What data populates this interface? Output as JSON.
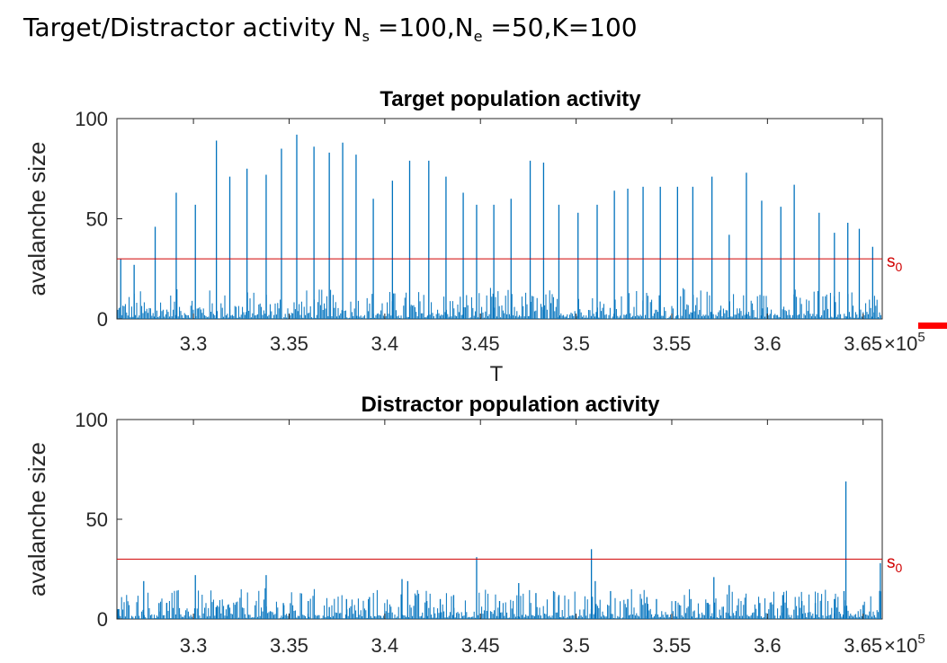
{
  "slide": {
    "title_prefix": "Target/Distractor activity N",
    "sub_s": "s",
    "mid1": " =100,N",
    "sub_e": "e",
    "title_suffix": " =50,K=100"
  },
  "colors": {
    "series": "#0072bd",
    "threshold": "#d00000",
    "axis": "#000000",
    "ticklabel": "#262626",
    "marker": "#ff0000"
  },
  "chart_data": [
    {
      "type": "line",
      "title": "Target population activity",
      "xlabel": "T",
      "ylabel": "avalanche size",
      "xlim": [
        326000,
        366000
      ],
      "ylim": [
        0,
        100
      ],
      "xticks": [
        330000,
        335000,
        340000,
        345000,
        350000,
        355000,
        360000,
        365000
      ],
      "xtick_labels": [
        "3.3",
        "3.35",
        "3.4",
        "3.45",
        "3.5",
        "3.55",
        "3.6",
        "3.65"
      ],
      "yticks": [
        0,
        50,
        100
      ],
      "ytick_labels": [
        "0",
        "50",
        "100"
      ],
      "exponent_base": "×10",
      "exponent_power": "5",
      "threshold": {
        "value": 30,
        "label_base": "s",
        "label_sub": "0"
      },
      "peaks": [
        {
          "x": 326200,
          "y": 30
        },
        {
          "x": 326900,
          "y": 27
        },
        {
          "x": 328000,
          "y": 46
        },
        {
          "x": 329100,
          "y": 63
        },
        {
          "x": 330100,
          "y": 57
        },
        {
          "x": 331200,
          "y": 89
        },
        {
          "x": 331900,
          "y": 71
        },
        {
          "x": 332800,
          "y": 75
        },
        {
          "x": 333800,
          "y": 72
        },
        {
          "x": 334600,
          "y": 85
        },
        {
          "x": 335400,
          "y": 92
        },
        {
          "x": 336300,
          "y": 86
        },
        {
          "x": 337100,
          "y": 83
        },
        {
          "x": 337800,
          "y": 88
        },
        {
          "x": 338500,
          "y": 82
        },
        {
          "x": 339400,
          "y": 60
        },
        {
          "x": 340400,
          "y": 69
        },
        {
          "x": 341300,
          "y": 79
        },
        {
          "x": 342300,
          "y": 79
        },
        {
          "x": 343200,
          "y": 71
        },
        {
          "x": 344100,
          "y": 63
        },
        {
          "x": 344800,
          "y": 57
        },
        {
          "x": 345700,
          "y": 57
        },
        {
          "x": 346600,
          "y": 60
        },
        {
          "x": 347600,
          "y": 79
        },
        {
          "x": 348300,
          "y": 78
        },
        {
          "x": 349100,
          "y": 57
        },
        {
          "x": 350100,
          "y": 53
        },
        {
          "x": 351100,
          "y": 57
        },
        {
          "x": 352000,
          "y": 64
        },
        {
          "x": 352700,
          "y": 65
        },
        {
          "x": 353500,
          "y": 66
        },
        {
          "x": 354400,
          "y": 66
        },
        {
          "x": 355300,
          "y": 66
        },
        {
          "x": 356100,
          "y": 66
        },
        {
          "x": 357100,
          "y": 71
        },
        {
          "x": 358000,
          "y": 42
        },
        {
          "x": 358900,
          "y": 73
        },
        {
          "x": 359700,
          "y": 59
        },
        {
          "x": 360700,
          "y": 56
        },
        {
          "x": 361400,
          "y": 67
        },
        {
          "x": 362700,
          "y": 53
        },
        {
          "x": 363500,
          "y": 43
        },
        {
          "x": 364200,
          "y": 48
        },
        {
          "x": 364800,
          "y": 45
        },
        {
          "x": 365500,
          "y": 36
        }
      ]
    },
    {
      "type": "line",
      "title": "Distractor population activity",
      "xlabel": "",
      "ylabel": "avalanche size",
      "xlim": [
        326000,
        366000
      ],
      "ylim": [
        0,
        100
      ],
      "xticks": [
        330000,
        335000,
        340000,
        345000,
        350000,
        355000,
        360000,
        365000
      ],
      "xtick_labels": [
        "3.3",
        "3.35",
        "3.4",
        "3.45",
        "3.5",
        "3.55",
        "3.6",
        "3.65"
      ],
      "yticks": [
        0,
        50,
        100
      ],
      "ytick_labels": [
        "0",
        "50",
        "100"
      ],
      "exponent_base": "×10",
      "exponent_power": "5",
      "threshold": {
        "value": 30,
        "label_base": "s",
        "label_sub": "0"
      },
      "peaks": [
        {
          "x": 326100,
          "y": 5
        },
        {
          "x": 327400,
          "y": 19
        },
        {
          "x": 328200,
          "y": 8
        },
        {
          "x": 328600,
          "y": 8
        },
        {
          "x": 330100,
          "y": 22
        },
        {
          "x": 331200,
          "y": 6
        },
        {
          "x": 331800,
          "y": 7
        },
        {
          "x": 333800,
          "y": 22
        },
        {
          "x": 334700,
          "y": 8
        },
        {
          "x": 336000,
          "y": 9
        },
        {
          "x": 337100,
          "y": 6
        },
        {
          "x": 338000,
          "y": 10
        },
        {
          "x": 339200,
          "y": 11
        },
        {
          "x": 340900,
          "y": 20
        },
        {
          "x": 341200,
          "y": 19
        },
        {
          "x": 342200,
          "y": 9
        },
        {
          "x": 342900,
          "y": 10
        },
        {
          "x": 343600,
          "y": 12
        },
        {
          "x": 344800,
          "y": 31
        },
        {
          "x": 346000,
          "y": 9
        },
        {
          "x": 347000,
          "y": 18
        },
        {
          "x": 347900,
          "y": 13
        },
        {
          "x": 349100,
          "y": 12
        },
        {
          "x": 350800,
          "y": 35
        },
        {
          "x": 351000,
          "y": 19
        },
        {
          "x": 351800,
          "y": 14
        },
        {
          "x": 352700,
          "y": 10
        },
        {
          "x": 353700,
          "y": 11
        },
        {
          "x": 354200,
          "y": 10
        },
        {
          "x": 355200,
          "y": 9
        },
        {
          "x": 356000,
          "y": 10
        },
        {
          "x": 356900,
          "y": 8
        },
        {
          "x": 357200,
          "y": 21
        },
        {
          "x": 358000,
          "y": 17
        },
        {
          "x": 359600,
          "y": 8
        },
        {
          "x": 360800,
          "y": 12
        },
        {
          "x": 361800,
          "y": 9
        },
        {
          "x": 362500,
          "y": 8
        },
        {
          "x": 363500,
          "y": 10
        },
        {
          "x": 364000,
          "y": 14
        },
        {
          "x": 364100,
          "y": 69
        },
        {
          "x": 365000,
          "y": 7
        },
        {
          "x": 365900,
          "y": 28
        }
      ]
    }
  ]
}
